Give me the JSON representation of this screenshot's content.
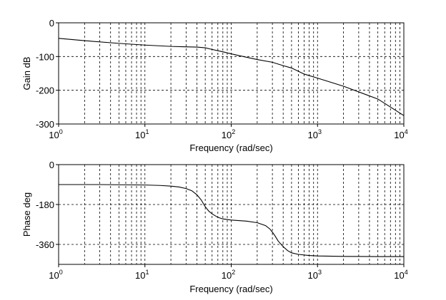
{
  "chart_data": [
    {
      "type": "line",
      "xscale": "log",
      "xlim": [
        1,
        10000
      ],
      "ylim": [
        -300,
        0
      ],
      "grid": true,
      "xlabel": "Frequency (rad/sec)",
      "ylabel": "Gain dB",
      "xticks": [
        {
          "base": "10",
          "exp": "0"
        },
        {
          "base": "10",
          "exp": "1"
        },
        {
          "base": "10",
          "exp": "2"
        },
        {
          "base": "10",
          "exp": "3"
        },
        {
          "base": "10",
          "exp": "4"
        }
      ],
      "yticks": [
        "0",
        "-100",
        "-200",
        "-300"
      ],
      "x": [
        1,
        2,
        5,
        10,
        20,
        40,
        50,
        60,
        80,
        100,
        150,
        200,
        300,
        400,
        500,
        700,
        1000,
        2000,
        5000,
        10000
      ],
      "y": [
        -46,
        -53,
        -61,
        -66,
        -70,
        -72,
        -74,
        -79,
        -86,
        -92,
        -102,
        -109,
        -117,
        -127,
        -134,
        -152,
        -164,
        -188,
        -226,
        -275
      ]
    },
    {
      "type": "line",
      "xscale": "log",
      "xlim": [
        1,
        10000
      ],
      "ylim": [
        -450,
        0
      ],
      "grid": true,
      "xlabel": "Frequency (rad/sec)",
      "ylabel": "Phase deg",
      "xticks": [
        {
          "base": "10",
          "exp": "0"
        },
        {
          "base": "10",
          "exp": "1"
        },
        {
          "base": "10",
          "exp": "2"
        },
        {
          "base": "10",
          "exp": "3"
        },
        {
          "base": "10",
          "exp": "4"
        }
      ],
      "yticks": [
        "0",
        "-180",
        "-360"
      ],
      "ytick_values": [
        0,
        -180,
        -360
      ],
      "x": [
        1,
        3,
        10,
        15,
        20,
        25,
        30,
        35,
        40,
        45,
        50,
        55,
        60,
        70,
        80,
        100,
        150,
        200,
        250,
        280,
        300,
        320,
        350,
        400,
        450,
        500,
        600,
        800,
        1000,
        2000,
        5000,
        10000
      ],
      "y": [
        -90,
        -90,
        -92,
        -94,
        -97,
        -101,
        -108,
        -118,
        -136,
        -160,
        -190,
        -210,
        -222,
        -238,
        -245,
        -250,
        -255,
        -262,
        -275,
        -290,
        -305,
        -320,
        -345,
        -370,
        -388,
        -398,
        -405,
        -410,
        -412,
        -414,
        -415,
        -415
      ]
    }
  ]
}
